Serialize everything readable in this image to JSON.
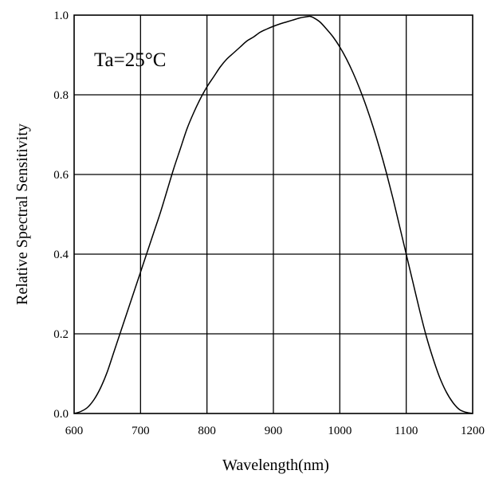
{
  "chart_data": {
    "type": "line",
    "title": "",
    "xlabel": "Wavelength(nm)",
    "ylabel": "Relative Spectral Sensitivity",
    "annotation": "Ta=25°C",
    "xlim": [
      600,
      1200
    ],
    "ylim": [
      0.0,
      1.0
    ],
    "x_ticks": [
      600,
      700,
      800,
      900,
      1000,
      1100,
      1200
    ],
    "y_ticks": [
      0.0,
      0.2,
      0.4,
      0.6,
      0.8,
      1.0
    ],
    "x_tick_labels": [
      "600",
      "700",
      "800",
      "900",
      "1000",
      "1100",
      "1200"
    ],
    "y_tick_labels": [
      "0.0",
      "0.2",
      "0.4",
      "0.6",
      "0.8",
      "1.0"
    ],
    "grid": true,
    "legend": "none",
    "series": [
      {
        "x": [
          600,
          610,
          620,
          630,
          640,
          650,
          660,
          670,
          680,
          690,
          700,
          710,
          720,
          730,
          740,
          750,
          760,
          770,
          780,
          790,
          800,
          810,
          820,
          830,
          840,
          850,
          860,
          870,
          880,
          890,
          900,
          910,
          920,
          930,
          940,
          950,
          955,
          960,
          970,
          980,
          990,
          1000,
          1010,
          1020,
          1030,
          1040,
          1050,
          1060,
          1070,
          1080,
          1090,
          1100,
          1110,
          1120,
          1130,
          1140,
          1150,
          1160,
          1170,
          1180,
          1190,
          1200
        ],
        "y": [
          0.0,
          0.005,
          0.015,
          0.035,
          0.065,
          0.105,
          0.155,
          0.205,
          0.255,
          0.305,
          0.355,
          0.405,
          0.455,
          0.505,
          0.56,
          0.615,
          0.665,
          0.715,
          0.755,
          0.79,
          0.82,
          0.845,
          0.87,
          0.89,
          0.905,
          0.92,
          0.935,
          0.945,
          0.957,
          0.965,
          0.972,
          0.978,
          0.983,
          0.988,
          0.993,
          0.996,
          0.997,
          0.994,
          0.983,
          0.965,
          0.945,
          0.92,
          0.89,
          0.855,
          0.815,
          0.77,
          0.72,
          0.665,
          0.605,
          0.54,
          0.47,
          0.4,
          0.33,
          0.26,
          0.195,
          0.14,
          0.092,
          0.055,
          0.028,
          0.01,
          0.003,
          0.0
        ]
      }
    ]
  }
}
